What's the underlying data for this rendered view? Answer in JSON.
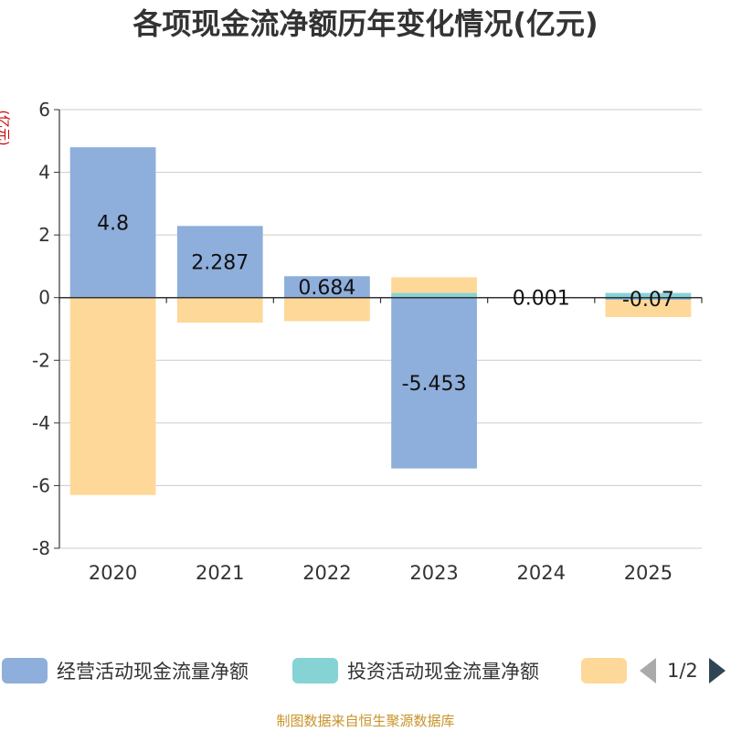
{
  "title": "各项现金流净额历年变化情况(亿元)",
  "unit_label": "(亿元)",
  "source": "制图数据来自恒生聚源数据库",
  "legend": {
    "items": [
      {
        "label": "经营活动现金流量净额",
        "color": "#8eaedb"
      },
      {
        "label": "投资活动现金流量净额",
        "color": "#86d3d6"
      },
      {
        "label": "",
        "color": "#fed898"
      }
    ],
    "page": "1/2"
  },
  "chart_data": {
    "type": "bar",
    "stacked": true,
    "categories": [
      "2020",
      "2021",
      "2022",
      "2023",
      "2024",
      "2025"
    ],
    "series": [
      {
        "name": "经营活动现金流量净额",
        "color": "#8eaedb",
        "values": [
          4.8,
          2.287,
          0.684,
          -5.453,
          0.001,
          -0.07
        ]
      },
      {
        "name": "投资活动现金流量净额",
        "color": "#86d3d6",
        "values": [
          0,
          0,
          0,
          0.15,
          0,
          0.15
        ]
      },
      {
        "name": "",
        "color": "#fed898",
        "values": [
          -6.3,
          -0.8,
          -0.75,
          0.5,
          0,
          -0.55
        ]
      }
    ],
    "data_labels": [
      "4.8",
      "2.287",
      "0.684",
      "-5.453",
      "0.001",
      "-0.07"
    ],
    "ylim": [
      -8,
      6
    ],
    "yticks": [
      6,
      4,
      2,
      0,
      -2,
      -4,
      -6,
      -8
    ],
    "ylabel": "(亿元)",
    "grid": true
  }
}
